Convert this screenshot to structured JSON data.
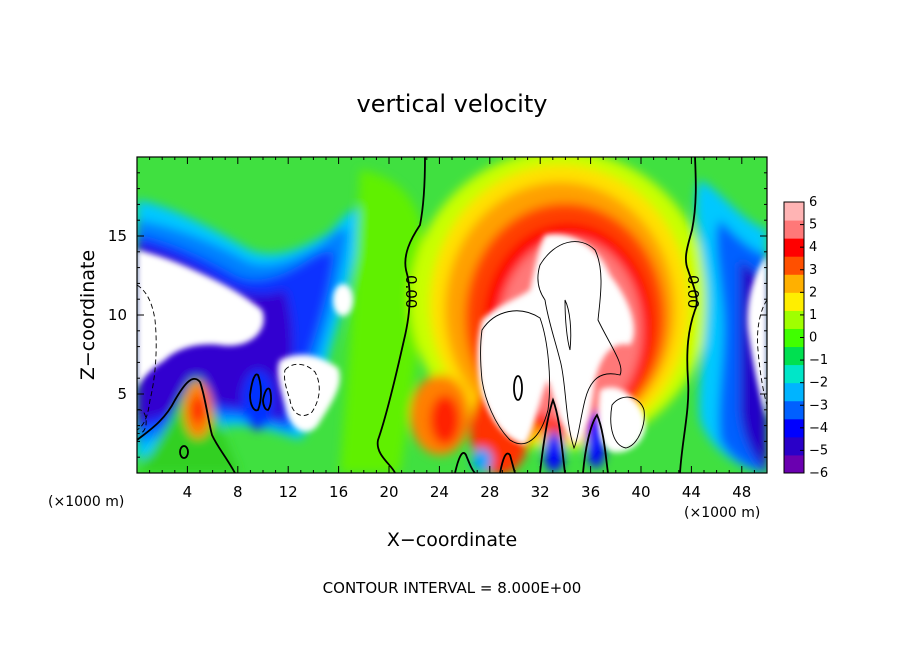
{
  "chart_data": {
    "type": "heatmap",
    "title": "vertical velocity",
    "xlabel": "X−coordinate",
    "ylabel": "Z−coordinate",
    "x_unit": "(×1000 m)",
    "x_unit_right": "(×1000 m)",
    "xlim": [
      0,
      50
    ],
    "ylim": [
      0,
      20
    ],
    "x_ticks": [
      4,
      8,
      12,
      16,
      20,
      24,
      28,
      32,
      36,
      40,
      44,
      48
    ],
    "y_ticks": [
      5,
      10,
      15
    ],
    "colorbar": {
      "min": -6,
      "max": 6,
      "ticks": [
        6,
        5,
        4,
        3,
        2,
        1,
        0,
        -1,
        -2,
        -3,
        -4,
        -5,
        -6
      ],
      "tick_labels": [
        "6",
        "5",
        "4",
        "3",
        "2",
        "1",
        "0",
        "−1",
        "−2",
        "−3",
        "−4",
        "−5",
        "−6"
      ],
      "colors": [
        "#6a00b0",
        "#2a00c8",
        "#0000ff",
        "#0060ff",
        "#00b4ff",
        "#00e6c8",
        "#00e050",
        "#40ff00",
        "#a0ff00",
        "#ffee00",
        "#ffb000",
        "#ff5000",
        "#ff0000",
        "#ff7878",
        "#ffb4b4"
      ]
    },
    "contour_labels": [
      "0.00",
      "0.00"
    ],
    "contour_interval_note": "CONTOUR INTERVAL = 8.000E+00",
    "grid": false
  }
}
